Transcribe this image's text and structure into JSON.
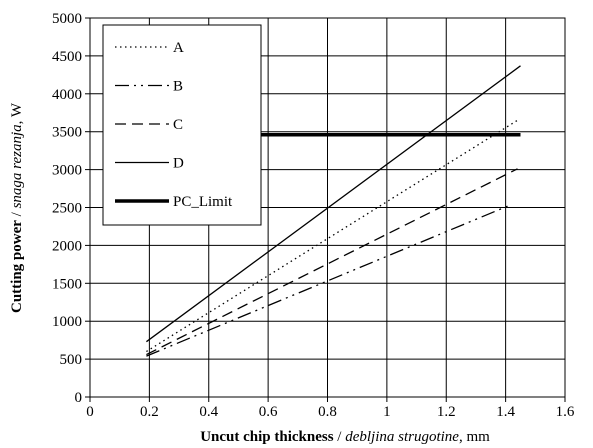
{
  "chart_data": {
    "type": "line",
    "xlabel_bold": "Uncut chip thickness",
    "xlabel_sep": " / ",
    "xlabel_italic": "debljina strugotine",
    "xlabel_unit": ", mm",
    "ylabel_bold": "Cutting power",
    "ylabel_sep": " / ",
    "ylabel_italic": "snaga rezanja",
    "ylabel_unit": ", W",
    "xlim": [
      0,
      1.6
    ],
    "ylim": [
      0,
      5000
    ],
    "x_ticks": [
      0,
      0.2,
      0.4,
      0.6,
      0.8,
      1,
      1.2,
      1.4,
      1.6
    ],
    "x_tick_labels": [
      "0",
      "0.2",
      "0.4",
      "0.6",
      "0.8",
      "1",
      "1.2",
      "1.4",
      "1.6"
    ],
    "y_ticks": [
      0,
      500,
      1000,
      1500,
      2000,
      2500,
      3000,
      3500,
      4000,
      4500,
      5000
    ],
    "y_tick_labels": [
      "0",
      "500",
      "1000",
      "1500",
      "2000",
      "2500",
      "3000",
      "3500",
      "4000",
      "4500",
      "5000"
    ],
    "grid": true,
    "legend_position": "top-left",
    "series": [
      {
        "name": "A",
        "style": "dotted",
        "x": [
          0.19,
          1.44
        ],
        "y": [
          600,
          3650
        ]
      },
      {
        "name": "B",
        "style": "dash-dot-dot",
        "x": [
          0.19,
          1.42
        ],
        "y": [
          540,
          2540
        ]
      },
      {
        "name": "C",
        "style": "dashed",
        "x": [
          0.19,
          1.44
        ],
        "y": [
          560,
          3010
        ]
      },
      {
        "name": "D",
        "style": "solid",
        "x": [
          0.19,
          1.45
        ],
        "y": [
          730,
          4370
        ]
      },
      {
        "name": "PC_Limit",
        "style": "thick",
        "x": [
          0.19,
          1.45
        ],
        "y": [
          3460,
          3460
        ]
      }
    ]
  }
}
